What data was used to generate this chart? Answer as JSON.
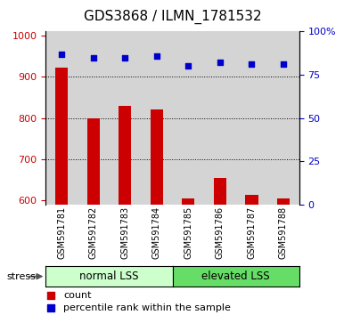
{
  "title": "GDS3868 / ILMN_1781532",
  "samples": [
    "GSM591781",
    "GSM591782",
    "GSM591783",
    "GSM591784",
    "GSM591785",
    "GSM591786",
    "GSM591787",
    "GSM591788"
  ],
  "counts": [
    922,
    800,
    830,
    820,
    605,
    655,
    615,
    605
  ],
  "percentiles": [
    87,
    85,
    85,
    86,
    80,
    82,
    81,
    81
  ],
  "ylim_left": [
    590,
    1010
  ],
  "ylim_right": [
    0,
    100
  ],
  "yticks_left": [
    600,
    700,
    800,
    900,
    1000
  ],
  "yticks_right": [
    0,
    25,
    50,
    75,
    100
  ],
  "ytick_labels_right": [
    "0",
    "25",
    "50",
    "75",
    "100%"
  ],
  "bar_color": "#cc0000",
  "marker_color": "#0000cc",
  "bar_bottom": 590,
  "group1_label": "normal LSS",
  "group2_label": "elevated LSS",
  "stress_label": "stress",
  "legend_count": "count",
  "legend_pct": "percentile rank within the sample",
  "group1_color": "#ccffcc",
  "group2_color": "#66dd66",
  "bg_gray": "#d4d4d4",
  "title_fontsize": 11,
  "tick_fontsize": 8,
  "bar_width": 0.4
}
